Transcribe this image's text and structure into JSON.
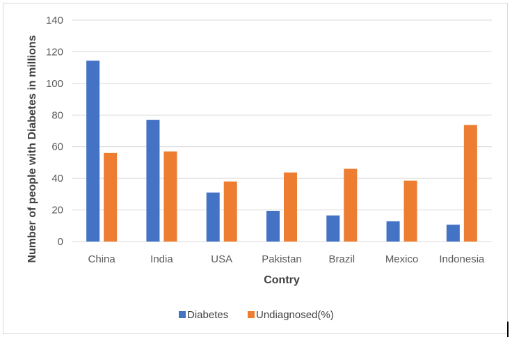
{
  "chart_data": {
    "type": "bar",
    "title": "",
    "xlabel": "Contry",
    "ylabel": "Number of people with Diabetes in millions",
    "categories": [
      "China",
      "India",
      "USA",
      "Pakistan",
      "Brazil",
      "Mexico",
      "Indonesia"
    ],
    "series": [
      {
        "name": "Diabetes",
        "color": "#4472c4",
        "values": [
          114.4,
          77,
          31,
          19.4,
          16.5,
          12.8,
          10.7
        ]
      },
      {
        "name": "Undiagnosed(%)",
        "color": "#ed7d31",
        "values": [
          56,
          57,
          38,
          43.7,
          46,
          38.5,
          73.7
        ]
      }
    ],
    "ylim": [
      0,
      140
    ],
    "yticks": [
      "0",
      "20",
      "40",
      "60",
      "80",
      "100",
      "120",
      "140"
    ],
    "grid": true,
    "legend_position": "bottom"
  }
}
